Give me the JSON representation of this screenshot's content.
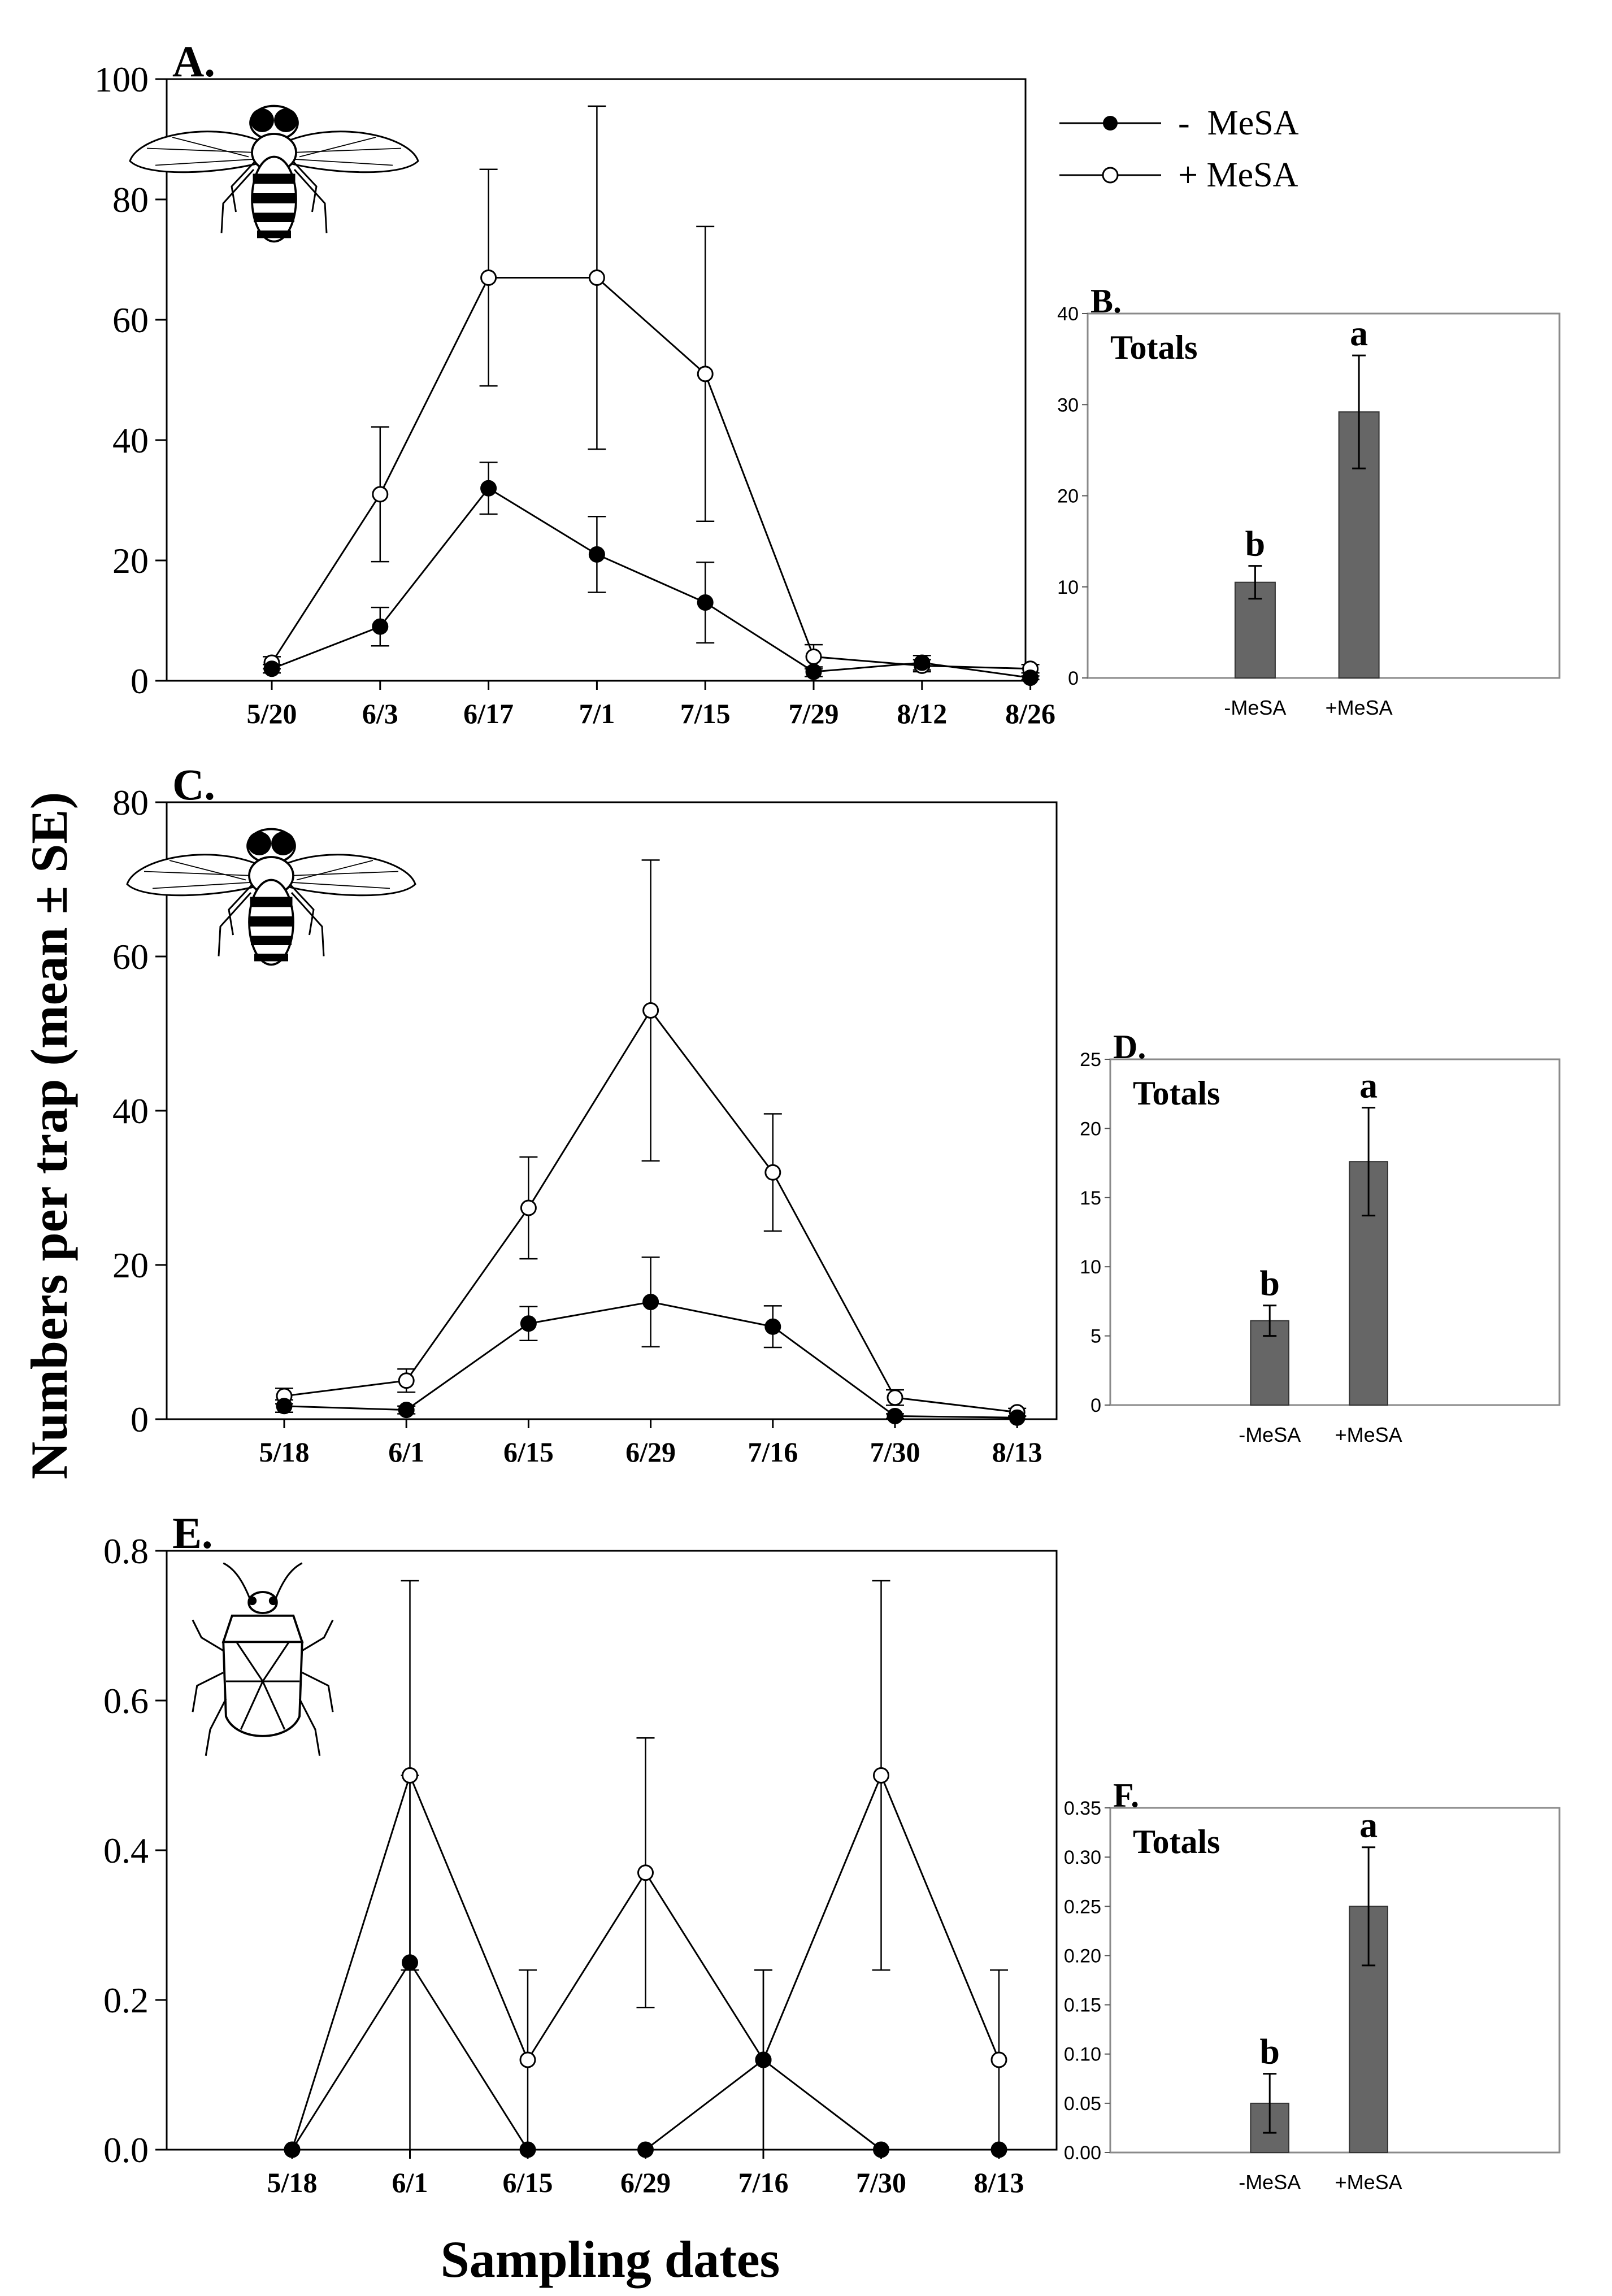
{
  "figure": {
    "ylabel": "Numbers per trap (mean ± SE)",
    "xlabel": "Sampling dates"
  },
  "legend": {
    "entries": [
      {
        "label": "-  MeSA",
        "marker": "filled"
      },
      {
        "label": "+ MeSA",
        "marker": "open"
      }
    ]
  },
  "colors": {
    "bar": "#666666",
    "ink": "#000000",
    "background": "#ffffff"
  },
  "icons": {
    "A": "hoverfly-icon",
    "C": "hoverfly-icon",
    "E": "true-bug-icon"
  },
  "chart_data": [
    {
      "id": "A",
      "panel_label": "A.",
      "type": "line",
      "categories": [
        "5/20",
        "6/3",
        "6/17",
        "7/1",
        "7/15",
        "7/29",
        "8/12",
        "8/26"
      ],
      "ylim": [
        0,
        100
      ],
      "yticks": [
        "0",
        "20",
        "40",
        "60",
        "80",
        "100"
      ],
      "series": [
        {
          "name": "-  MeSA",
          "marker": "filled",
          "values": [
            2,
            9,
            32,
            21,
            13,
            1.5,
            3,
            0.5
          ],
          "err": [
            0.7,
            3.2,
            4.3,
            6.3,
            6.7,
            0.8,
            1.2,
            0.3
          ]
        },
        {
          "name": "+ MeSA",
          "marker": "open",
          "values": [
            3,
            31,
            67,
            67,
            51,
            4,
            2.5,
            2
          ],
          "err": [
            1,
            11.2,
            18,
            28.5,
            24.5,
            2,
            1,
            0.7
          ]
        }
      ]
    },
    {
      "id": "B",
      "panel_label": "B.",
      "type": "bar",
      "inner_label": "Totals",
      "categories": [
        "-MeSA",
        "+MeSA"
      ],
      "values": [
        10.5,
        29.2
      ],
      "err": [
        1.8,
        6.2
      ],
      "letters": [
        "b",
        "a"
      ],
      "ylim": [
        0,
        40
      ],
      "yticks": [
        "0",
        "10",
        "20",
        "30",
        "40"
      ]
    },
    {
      "id": "C",
      "panel_label": "C.",
      "type": "line",
      "categories": [
        "5/18",
        "6/1",
        "6/15",
        "6/29",
        "7/16",
        "7/30",
        "8/13"
      ],
      "ylim": [
        0,
        80
      ],
      "yticks": [
        "0",
        "20",
        "40",
        "60",
        "80"
      ],
      "series": [
        {
          "name": "-  MeSA",
          "marker": "filled",
          "values": [
            1.7,
            1.2,
            12.4,
            15.2,
            12,
            0.4,
            0.2
          ],
          "err": [
            0.8,
            0.5,
            2.2,
            5.8,
            2.7,
            0.3,
            0.2
          ]
        },
        {
          "name": "+ MeSA",
          "marker": "open",
          "values": [
            3,
            5,
            27.4,
            53,
            32,
            2.8,
            0.9
          ],
          "err": [
            1,
            1.5,
            6.6,
            19.5,
            7.6,
            1,
            0.5
          ]
        }
      ]
    },
    {
      "id": "D",
      "panel_label": "D.",
      "type": "bar",
      "inner_label": "Totals",
      "categories": [
        "-MeSA",
        "+MeSA"
      ],
      "values": [
        6.1,
        17.6
      ],
      "err": [
        1.1,
        3.9
      ],
      "letters": [
        "b",
        "a"
      ],
      "ylim": [
        0,
        25
      ],
      "yticks": [
        "0",
        "5",
        "10",
        "15",
        "20",
        "25"
      ]
    },
    {
      "id": "E",
      "panel_label": "E.",
      "type": "line",
      "categories": [
        "5/18",
        "6/1",
        "6/15",
        "6/29",
        "7/16",
        "7/30",
        "8/13"
      ],
      "ylim": [
        0,
        0.8
      ],
      "yticks": [
        "0.0",
        "0.2",
        "0.4",
        "0.6",
        "0.8"
      ],
      "series": [
        {
          "name": "-  MeSA",
          "marker": "filled",
          "values": [
            0,
            0.25,
            0,
            0,
            0.12,
            0,
            0
          ],
          "err": [
            0,
            0.25,
            0,
            0,
            0.12,
            0,
            0
          ]
        },
        {
          "name": "+ MeSA",
          "marker": "open",
          "values": [
            0,
            0.5,
            0.12,
            0.37,
            0.12,
            0.5,
            0.12
          ],
          "err": [
            0,
            0.26,
            0.12,
            0.18,
            0.12,
            0.26,
            0.12
          ]
        }
      ]
    },
    {
      "id": "F",
      "panel_label": "F.",
      "type": "bar",
      "inner_label": "Totals",
      "categories": [
        "-MeSA",
        "+MeSA"
      ],
      "values": [
        0.05,
        0.25
      ],
      "err": [
        0.03,
        0.06
      ],
      "letters": [
        "b",
        "a"
      ],
      "ylim": [
        0,
        0.35
      ],
      "yticks": [
        "0.00",
        "0.05",
        "0.10",
        "0.15",
        "0.20",
        "0.25",
        "0.30",
        "0.35"
      ]
    }
  ]
}
